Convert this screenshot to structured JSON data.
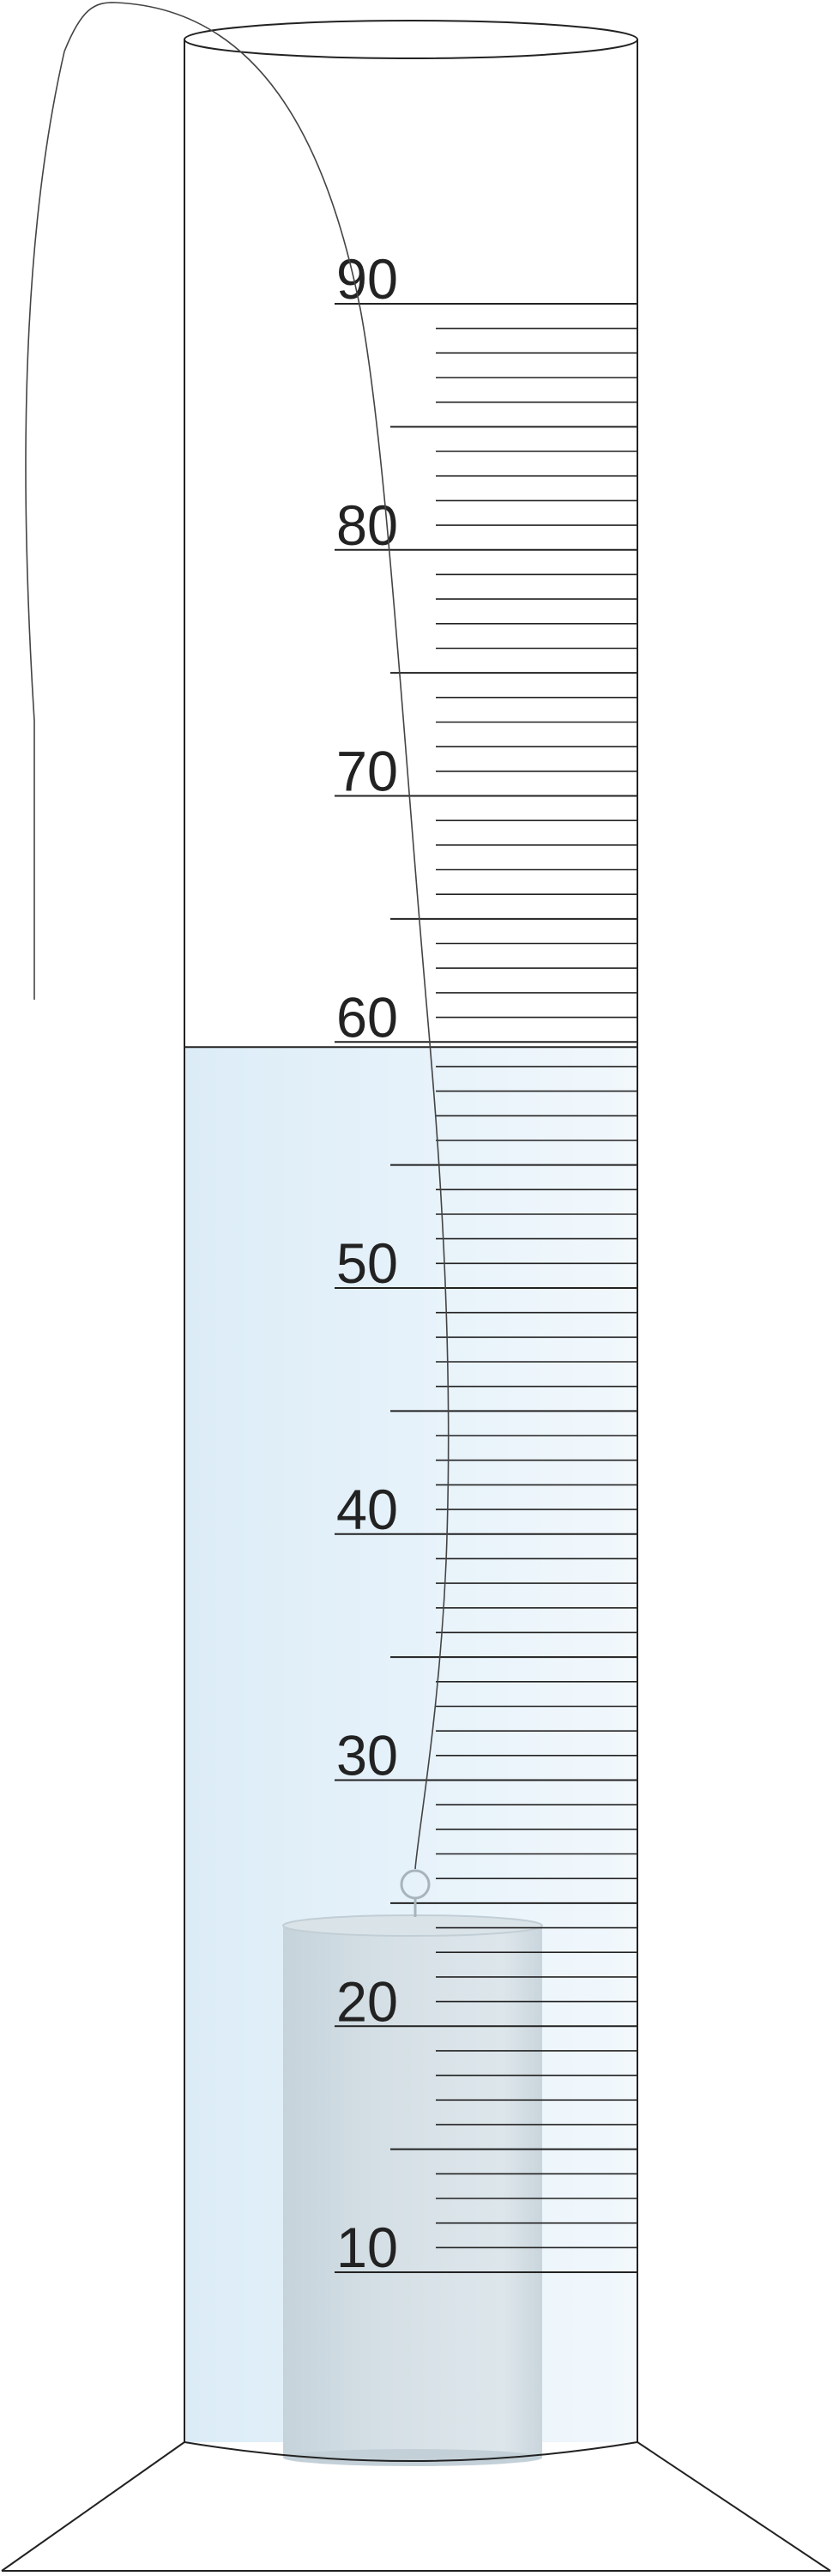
{
  "figure": {
    "subject": "graduated cylinder with a solid cylinder suspended by a string and submerged in liquid",
    "scale": {
      "labels": [
        "10",
        "20",
        "30",
        "40",
        "50",
        "60",
        "70",
        "80",
        "90"
      ],
      "label_values": [
        10,
        20,
        30,
        40,
        50,
        60,
        70,
        80,
        90
      ],
      "min_value": 10,
      "max_value": 90,
      "minor_division": 1,
      "half_division": 5
    },
    "liquid": {
      "level_value": 60,
      "color": "#e3f1fa"
    },
    "submerged_object": {
      "top_value": 22.5,
      "color": "#d2dde3"
    },
    "colors": {
      "outline": "#222222",
      "string": "#555555",
      "tick": "#222222"
    }
  }
}
